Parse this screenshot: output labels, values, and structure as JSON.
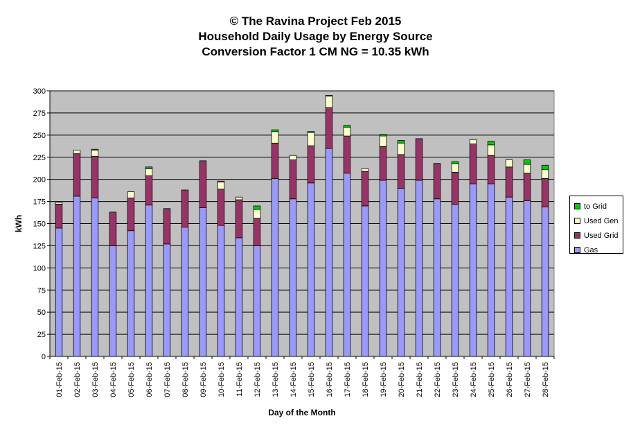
{
  "chart_data": {
    "type": "bar",
    "stacked": true,
    "title_lines": [
      "© The Ravina Project Feb 2015",
      "Household Daily Usage by Energy Source",
      "Conversion Factor 1 CM NG = 10.35 kWh"
    ],
    "xlabel": "Day of the Month",
    "ylabel": "kWh",
    "ylim": [
      0,
      300
    ],
    "yticks": [
      0,
      25,
      50,
      75,
      100,
      125,
      150,
      175,
      200,
      225,
      250,
      275,
      300
    ],
    "grid": true,
    "legend_position": "right",
    "plot_background": "#c0c0c0",
    "categories": [
      "01-Feb-15",
      "02-Feb-15",
      "03-Feb-15",
      "04-Feb-15",
      "05-Feb-15",
      "06-Feb-15",
      "07-Feb-15",
      "08-Feb-15",
      "09-Feb-15",
      "10-Feb-15",
      "11-Feb-15",
      "12-Feb-15",
      "13-Feb-15",
      "14-Feb-15",
      "15-Feb-15",
      "16-Feb-15",
      "17-Feb-15",
      "18-Feb-15",
      "19-Feb-15",
      "20-Feb-15",
      "21-Feb-15",
      "22-Feb-15",
      "23-Feb-15",
      "24-Feb-15",
      "25-Feb-15",
      "26-Feb-15",
      "27-Feb-15",
      "28-Feb-15"
    ],
    "series": [
      {
        "name": "Gas",
        "color": "#9999ff",
        "values": [
          145,
          181,
          179,
          125,
          142,
          171,
          127,
          146,
          168,
          148,
          134,
          125,
          201,
          178,
          196,
          235,
          207,
          170,
          199,
          190,
          199,
          178,
          172,
          195,
          195,
          180,
          176,
          169
        ]
      },
      {
        "name": "Used Grid",
        "color": "#993366",
        "values": [
          27,
          48,
          47,
          38,
          37,
          33,
          40,
          42,
          53,
          41,
          43,
          31,
          40,
          44,
          42,
          46,
          42,
          39,
          38,
          38,
          47,
          40,
          36,
          45,
          32,
          34,
          31,
          32
        ]
      },
      {
        "name": "Used Gen",
        "color": "#ffffcc",
        "values": [
          2,
          4,
          7,
          0,
          7,
          8,
          0,
          0,
          0,
          8,
          3,
          10,
          13,
          5,
          15,
          13,
          10,
          3,
          12,
          13,
          0,
          0,
          10,
          5,
          12,
          8,
          10,
          10
        ]
      },
      {
        "name": "to Grid",
        "color": "#00cc00",
        "values": [
          0,
          0,
          1,
          0,
          0,
          2,
          0,
          0,
          0,
          1,
          0,
          4,
          2,
          0,
          1,
          1,
          2,
          0,
          2,
          3,
          0,
          0,
          2,
          0,
          4,
          0,
          5,
          5
        ]
      }
    ],
    "legend_order": [
      "to Grid",
      "Used Gen",
      "Used Grid",
      "Gas"
    ]
  }
}
